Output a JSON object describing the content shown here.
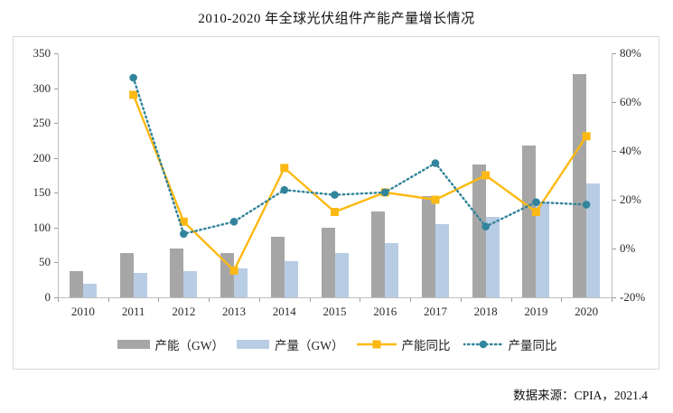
{
  "title": "2010-2020 年全球光伏组件产能产量增长情况",
  "source_note": "数据来源：CPIA，2021.4",
  "colors": {
    "capacity_bar": "#a6a6a6",
    "production_bar": "#b8cce4",
    "capacity_yoy_line": "#fdb913",
    "production_yoy_line": "#31849b",
    "axis": "#bfbfbf",
    "border": "#d9d9d9",
    "text": "#2b2b2b"
  },
  "chart_data": {
    "type": "bar",
    "subtype": "combo-bar-line-dual-axis",
    "title": "2010-2020 年全球光伏组件产能产量增长情况",
    "categories": [
      "2010",
      "2011",
      "2012",
      "2013",
      "2014",
      "2015",
      "2016",
      "2017",
      "2018",
      "2019",
      "2020"
    ],
    "series": [
      {
        "key": "capacity",
        "name": "产能（GW）",
        "type": "bar",
        "axis": "left",
        "color": "#a6a6a6",
        "values": [
          38,
          63,
          70,
          63,
          87,
          100,
          123,
          145,
          190,
          218,
          320
        ]
      },
      {
        "key": "production",
        "name": "产量（GW）",
        "type": "bar",
        "axis": "left",
        "color": "#b8cce4",
        "values": [
          20,
          35,
          37,
          42,
          52,
          63,
          78,
          105,
          115,
          136,
          164
        ]
      },
      {
        "key": "capacity-yoy",
        "name": "产能同比",
        "type": "line",
        "axis": "right",
        "color": "#fdb913",
        "marker": "square",
        "dash": "solid",
        "values": [
          null,
          63,
          11,
          -9,
          33,
          15,
          23,
          20,
          30,
          15,
          46
        ]
      },
      {
        "key": "production-yoy",
        "name": "产量同比",
        "type": "line",
        "axis": "right",
        "color": "#31849b",
        "marker": "circle",
        "dash": "dotted",
        "values": [
          null,
          70,
          6,
          11,
          24,
          22,
          23,
          35,
          9,
          19,
          18
        ]
      }
    ],
    "left_axis": {
      "min": 0,
      "max": 350,
      "ticks": [
        "0",
        "50",
        "100",
        "150",
        "200",
        "250",
        "300",
        "350"
      ]
    },
    "right_axis": {
      "min": -20,
      "max": 80,
      "ticks": [
        "-20%",
        "0%",
        "20%",
        "40%",
        "60%",
        "80%"
      ]
    },
    "grid": false,
    "legend_position": "bottom-inside"
  }
}
